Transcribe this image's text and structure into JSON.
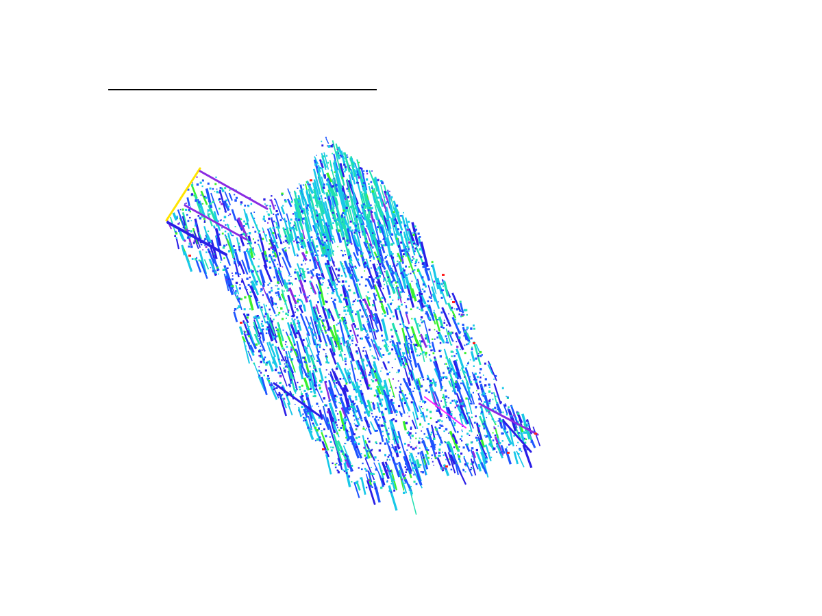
{
  "figure": {
    "type": "false-color strain / streak map",
    "background_color": "#ffffff",
    "scale_bar_color": "#000000",
    "palette": {
      "dark_blue": "#2a1ee6",
      "blue": "#1f55ff",
      "cyan": "#18c8e8",
      "teal": "#1fe0b0",
      "green": "#39f02e",
      "violet": "#8a2be2",
      "magenta": "#ff22ff",
      "yellow": "#ffe400",
      "red": "#ff2020"
    }
  }
}
